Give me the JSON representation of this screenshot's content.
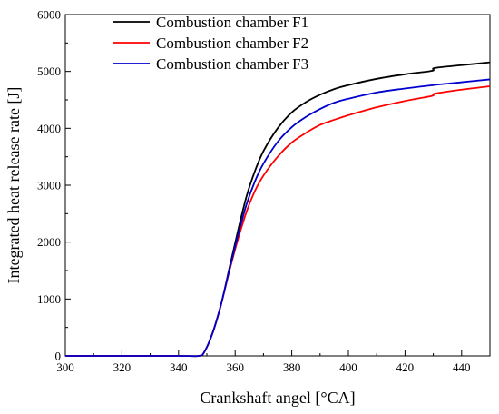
{
  "chart_data": {
    "type": "line",
    "title": "",
    "xlabel": "Crankshaft angel [°CA]",
    "ylabel": "Integrated heat release rate [J]",
    "xlim": [
      300,
      450
    ],
    "ylim": [
      0,
      6000
    ],
    "x_ticks": [
      300,
      320,
      340,
      360,
      380,
      400,
      420,
      440
    ],
    "y_ticks": [
      0,
      1000,
      2000,
      3000,
      4000,
      5000,
      6000
    ],
    "grid": false,
    "legend_position": "top-center",
    "series": [
      {
        "name": "Combustion chamber F1",
        "color": "#000000",
        "x": [
          300,
          340,
          347,
          349,
          352,
          355,
          358,
          361,
          364,
          367,
          370,
          375,
          380,
          385,
          390,
          395,
          400,
          410,
          420,
          429.5,
          430.5,
          440,
          450
        ],
        "y": [
          0,
          0,
          0,
          60,
          400,
          900,
          1550,
          2200,
          2800,
          3250,
          3600,
          4000,
          4280,
          4460,
          4590,
          4690,
          4760,
          4870,
          4950,
          5010,
          5060,
          5110,
          5160
        ]
      },
      {
        "name": "Combustion chamber F2",
        "color": "#ff0000",
        "x": [
          300,
          340,
          347,
          349,
          352,
          355,
          358,
          361,
          364,
          367,
          370,
          375,
          380,
          385,
          390,
          395,
          400,
          410,
          420,
          429.5,
          430.5,
          440,
          450
        ],
        "y": [
          0,
          0,
          0,
          60,
          400,
          900,
          1500,
          2050,
          2530,
          2900,
          3170,
          3500,
          3750,
          3920,
          4060,
          4150,
          4230,
          4370,
          4480,
          4570,
          4610,
          4680,
          4740
        ]
      },
      {
        "name": "Combustion chamber F3",
        "color": "#0000cc",
        "x": [
          300,
          340,
          347,
          349,
          352,
          355,
          358,
          361,
          364,
          367,
          370,
          375,
          380,
          385,
          390,
          395,
          400,
          410,
          420,
          430,
          440,
          450
        ],
        "y": [
          0,
          0,
          0,
          60,
          400,
          900,
          1520,
          2120,
          2660,
          3070,
          3380,
          3760,
          4020,
          4200,
          4340,
          4450,
          4520,
          4630,
          4700,
          4760,
          4810,
          4860
        ]
      }
    ]
  }
}
